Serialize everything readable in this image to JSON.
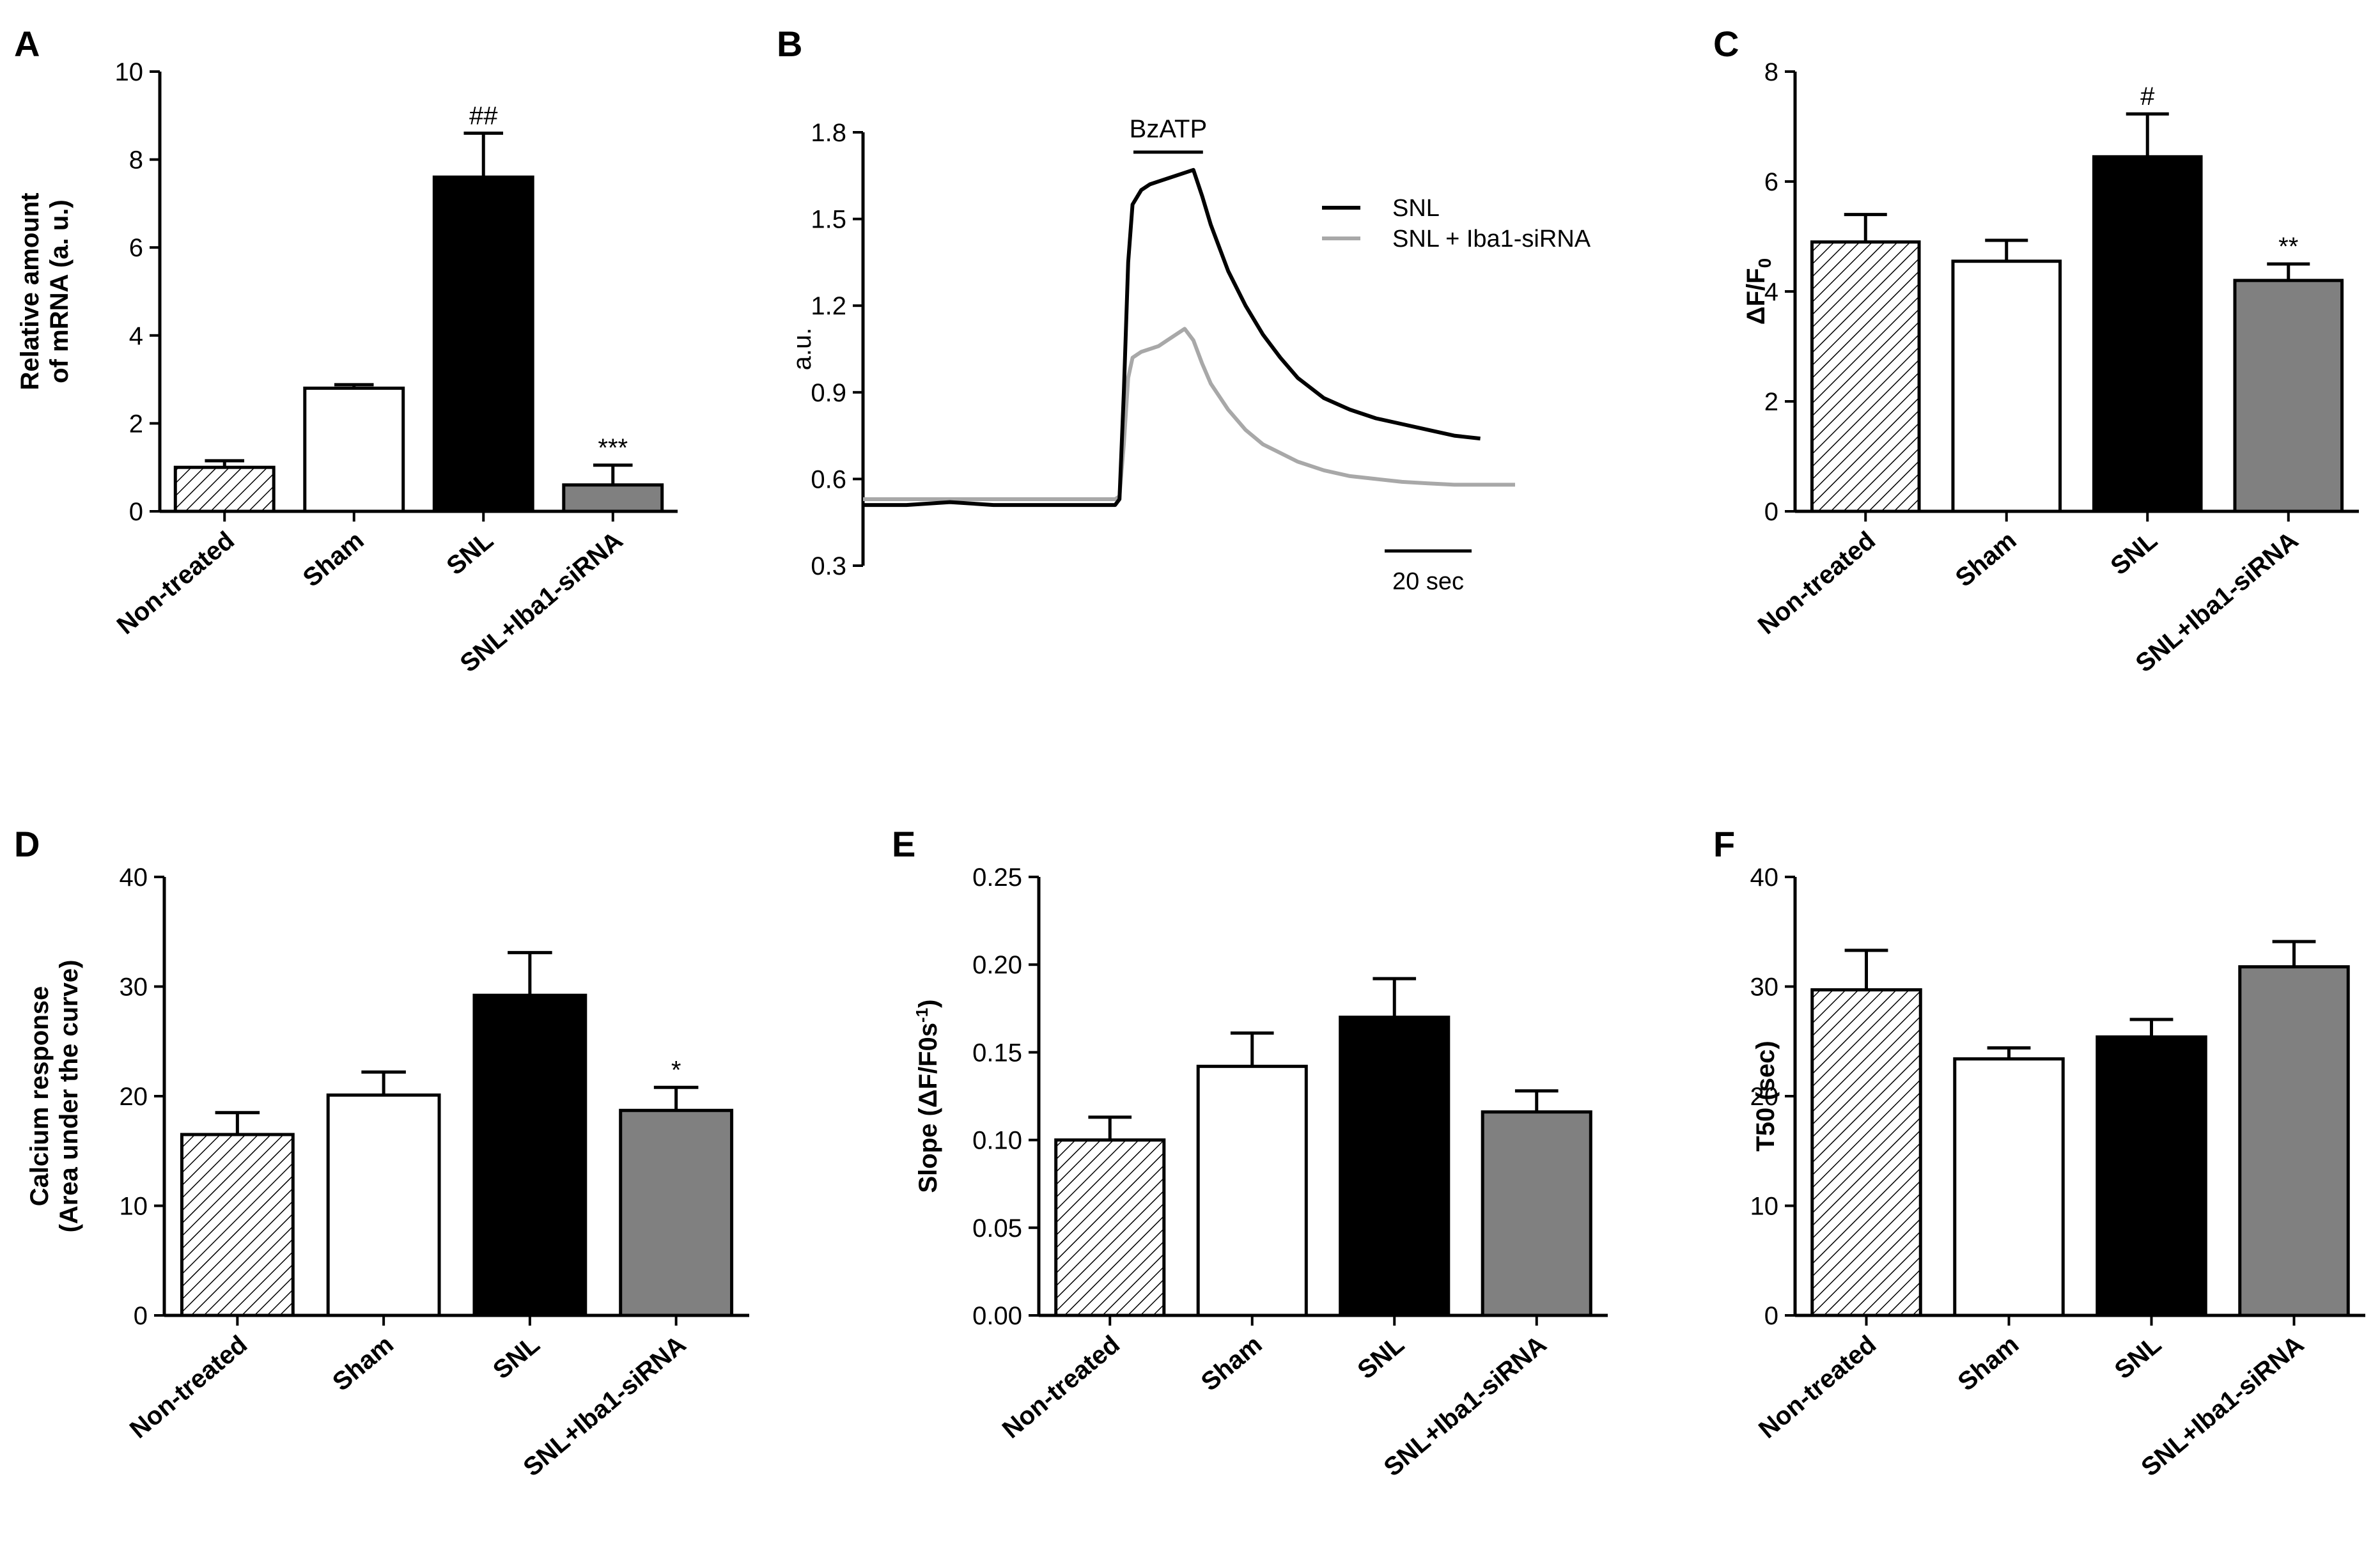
{
  "figure": {
    "background": "#ffffff"
  },
  "colors": {
    "snl_line": "#000000",
    "sirna_line": "#a8a8a8",
    "sham_fill": "#ffffff",
    "snl_fill": "#000000",
    "sirna_fill": "#808080",
    "hatch_fill": "hatch"
  },
  "chart_data": [
    {
      "id": "A",
      "letter": "A",
      "type": "bar",
      "ylabel_lines": [
        "Relative amount",
        "of mRNA (a. u.)"
      ],
      "ylim": [
        0,
        10
      ],
      "ticks": [
        0,
        2,
        4,
        6,
        8,
        10
      ],
      "tick_labels": [
        "0",
        "2",
        "4",
        "6",
        "8",
        "10"
      ],
      "categories": [
        "Non-treated",
        "Sham",
        "SNL",
        "SNL+Iba1-siRNA"
      ],
      "values": [
        1.0,
        2.8,
        7.6,
        0.6
      ],
      "errors": [
        0.15,
        0.08,
        1.0,
        0.45
      ],
      "annotations": [
        "",
        "",
        "##",
        "***"
      ]
    },
    {
      "id": "B",
      "letter": "B",
      "type": "line",
      "ylabel": "a.u.",
      "ylim": [
        0.3,
        1.8
      ],
      "ticks": [
        0.3,
        0.6,
        0.9,
        1.2,
        1.5,
        1.8
      ],
      "tick_labels": [
        "0.3",
        "0.6",
        "0.9",
        "1.2",
        "1.5",
        "1.8"
      ],
      "xlim": [
        0,
        150
      ],
      "stimulus_label": "BzATP",
      "stimulus_range": [
        60,
        76
      ],
      "scale_bar_label": "20 sec",
      "scale_bar_seconds": 20,
      "scale_bar_start": 120,
      "series": [
        {
          "name": "SNL",
          "color": "#000000",
          "x": [
            0,
            10,
            20,
            30,
            40,
            50,
            58,
            59,
            60,
            61,
            62,
            64,
            66,
            68,
            70,
            72,
            74,
            76,
            78,
            80,
            84,
            88,
            92,
            96,
            100,
            106,
            112,
            118,
            124,
            130,
            136,
            142
          ],
          "y": [
            0.51,
            0.51,
            0.52,
            0.51,
            0.51,
            0.51,
            0.51,
            0.53,
            0.9,
            1.35,
            1.55,
            1.6,
            1.62,
            1.63,
            1.64,
            1.65,
            1.66,
            1.67,
            1.58,
            1.48,
            1.32,
            1.2,
            1.1,
            1.02,
            0.95,
            0.88,
            0.84,
            0.81,
            0.79,
            0.77,
            0.75,
            0.74
          ]
        },
        {
          "name": "SNL + Iba1-siRNA",
          "color": "#a8a8a8",
          "x": [
            0,
            10,
            20,
            30,
            40,
            50,
            58,
            59,
            60,
            61,
            62,
            64,
            66,
            68,
            70,
            72,
            74,
            76,
            78,
            80,
            84,
            88,
            92,
            96,
            100,
            106,
            112,
            118,
            124,
            130,
            136,
            142,
            150
          ],
          "y": [
            0.53,
            0.53,
            0.53,
            0.53,
            0.53,
            0.53,
            0.53,
            0.54,
            0.72,
            0.95,
            1.02,
            1.04,
            1.05,
            1.06,
            1.08,
            1.1,
            1.12,
            1.08,
            1.0,
            0.93,
            0.84,
            0.77,
            0.72,
            0.69,
            0.66,
            0.63,
            0.61,
            0.6,
            0.59,
            0.585,
            0.58,
            0.58,
            0.58
          ]
        }
      ]
    },
    {
      "id": "C",
      "letter": "C",
      "type": "bar",
      "ylabel_main": "ΔF/F",
      "ylabel_sub": "0",
      "ylim": [
        0,
        8
      ],
      "ticks": [
        0,
        2,
        4,
        6,
        8
      ],
      "tick_labels": [
        "0",
        "2",
        "4",
        "6",
        "8"
      ],
      "categories": [
        "Non-treated",
        "Sham",
        "SNL",
        "SNL+Iba1-siRNA"
      ],
      "values": [
        4.9,
        4.55,
        6.45,
        4.2
      ],
      "errors": [
        0.5,
        0.38,
        0.78,
        0.3
      ],
      "annotations": [
        "",
        "",
        "#",
        "**"
      ]
    },
    {
      "id": "D",
      "letter": "D",
      "type": "bar",
      "ylabel_lines": [
        "Calcium response",
        "(Area under the curve)"
      ],
      "ylim": [
        0,
        40
      ],
      "ticks": [
        0,
        10,
        20,
        30,
        40
      ],
      "tick_labels": [
        "0",
        "10",
        "20",
        "30",
        "40"
      ],
      "categories": [
        "Non-treated",
        "Sham",
        "SNL",
        "SNL+Iba1-siRNA"
      ],
      "values": [
        16.5,
        20.1,
        29.2,
        18.7
      ],
      "errors": [
        2.0,
        2.1,
        3.9,
        2.1
      ],
      "annotations": [
        "",
        "",
        "",
        "*"
      ]
    },
    {
      "id": "E",
      "letter": "E",
      "type": "bar",
      "ylabel_main": "Slope (ΔF/F0s",
      "ylabel_sup": "-1",
      "ylabel_end": ")",
      "ylim": [
        0,
        0.25
      ],
      "ticks": [
        0,
        0.05,
        0.1,
        0.15,
        0.2,
        0.25
      ],
      "tick_labels": [
        "0.00",
        "0.05",
        "0.10",
        "0.15",
        "0.20",
        "0.25"
      ],
      "categories": [
        "Non-treated",
        "Sham",
        "SNL",
        "SNL+Iba1-siRNA"
      ],
      "values": [
        0.1,
        0.142,
        0.17,
        0.116
      ],
      "errors": [
        0.013,
        0.019,
        0.022,
        0.012
      ],
      "annotations": [
        "",
        "",
        "",
        ""
      ]
    },
    {
      "id": "F",
      "letter": "F",
      "type": "bar",
      "ylabel_lines": [
        "T50 (sec)"
      ],
      "ylim": [
        0,
        40
      ],
      "ticks": [
        0,
        10,
        20,
        30,
        40
      ],
      "tick_labels": [
        "0",
        "10",
        "20",
        "30",
        "40"
      ],
      "categories": [
        "Non-treated",
        "Sham",
        "SNL",
        "SNL+Iba1-siRNA"
      ],
      "values": [
        29.7,
        23.4,
        25.4,
        31.8
      ],
      "errors": [
        3.6,
        1.0,
        1.6,
        2.3
      ],
      "annotations": [
        "",
        "",
        "",
        ""
      ]
    }
  ]
}
